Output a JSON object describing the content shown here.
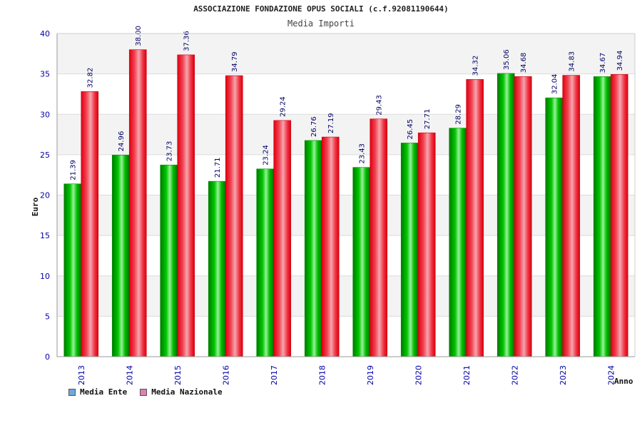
{
  "colors": {
    "ente": "#00b000",
    "nazionale": "#ee1122",
    "legend_ente": "#6fa8dc",
    "legend_nazionale": "#e07fb0",
    "axis_label": "#0000aa"
  },
  "chart_data": {
    "type": "bar",
    "title": "ASSOCIAZIONE FONDAZIONE OPUS SOCIALI (c.f.92081190644)",
    "subtitle": "Media Importi",
    "xlabel": "Anno",
    "ylabel": "Euro",
    "ylim": [
      0,
      40
    ],
    "yticks": [
      "0",
      "5",
      "10",
      "15",
      "20",
      "25",
      "30",
      "35",
      "40"
    ],
    "grid": true,
    "categories": [
      "2013",
      "2014",
      "2015",
      "2016",
      "2017",
      "2018",
      "2019",
      "2020",
      "2021",
      "2022",
      "2023",
      "2024"
    ],
    "series": [
      {
        "name": "Media Ente",
        "values": [
          21.39,
          24.96,
          23.73,
          21.71,
          23.24,
          26.76,
          23.43,
          26.45,
          28.29,
          35.06,
          32.04,
          34.67
        ],
        "labels": [
          "21.39",
          "24.96",
          "23.73",
          "21.71",
          "23.24",
          "26.76",
          "23.43",
          "26.45",
          "28.29",
          "35.06",
          "32.04",
          "34.67"
        ]
      },
      {
        "name": "Media Nazionale",
        "values": [
          32.82,
          38.0,
          37.36,
          34.79,
          29.24,
          27.19,
          29.43,
          27.71,
          34.32,
          34.68,
          34.83,
          34.94
        ],
        "labels": [
          "32.82",
          "38.00",
          "37.36",
          "34.79",
          "29.24",
          "27.19",
          "29.43",
          "27.71",
          "34.32",
          "34.68",
          "34.83",
          "34.94"
        ]
      }
    ],
    "legend_position": "bottom-left"
  }
}
